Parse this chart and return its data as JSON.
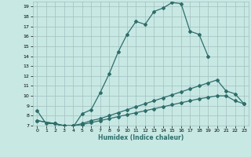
{
  "xlabel": "Humidex (Indice chaleur)",
  "xlim": [
    -0.5,
    23.5
  ],
  "ylim": [
    7,
    19.5
  ],
  "xticks": [
    0,
    1,
    2,
    3,
    4,
    5,
    6,
    7,
    8,
    9,
    10,
    11,
    12,
    13,
    14,
    15,
    16,
    17,
    18,
    19,
    20,
    21,
    22,
    23
  ],
  "yticks": [
    7,
    8,
    9,
    10,
    11,
    12,
    13,
    14,
    15,
    16,
    17,
    18,
    19
  ],
  "background_color": "#c8e8e4",
  "grid_color": "#a0bfbf",
  "line_color": "#2d6e6a",
  "line1_x": [
    0,
    1,
    2,
    3,
    4,
    5,
    6,
    7,
    8,
    9,
    10,
    11,
    12,
    13,
    14,
    15,
    16,
    17,
    18,
    19
  ],
  "line1_y": [
    8.5,
    7.2,
    7.2,
    6.85,
    6.85,
    8.2,
    8.6,
    10.3,
    12.2,
    14.4,
    16.2,
    17.5,
    17.2,
    18.5,
    18.85,
    19.4,
    19.3,
    16.5,
    16.2,
    14.0
  ],
  "line2_x": [
    0,
    2,
    3,
    4,
    5,
    6,
    7,
    8,
    9,
    10,
    11,
    12,
    13,
    14,
    15,
    16,
    17,
    18,
    19,
    20,
    21,
    22,
    23
  ],
  "line2_y": [
    7.5,
    7.2,
    7.0,
    7.0,
    7.2,
    7.5,
    7.7,
    8.0,
    8.3,
    8.6,
    8.9,
    9.2,
    9.5,
    9.8,
    10.1,
    10.4,
    10.7,
    11.0,
    11.3,
    11.6,
    10.5,
    10.2,
    9.2
  ],
  "line3_x": [
    0,
    2,
    3,
    4,
    5,
    6,
    7,
    8,
    9,
    10,
    11,
    12,
    13,
    14,
    15,
    16,
    17,
    18,
    19,
    20,
    21,
    22,
    23
  ],
  "line3_y": [
    7.5,
    7.2,
    7.0,
    7.0,
    7.1,
    7.3,
    7.5,
    7.7,
    7.9,
    8.1,
    8.3,
    8.5,
    8.7,
    8.9,
    9.1,
    9.3,
    9.5,
    9.7,
    9.85,
    10.0,
    10.0,
    9.5,
    9.2
  ]
}
